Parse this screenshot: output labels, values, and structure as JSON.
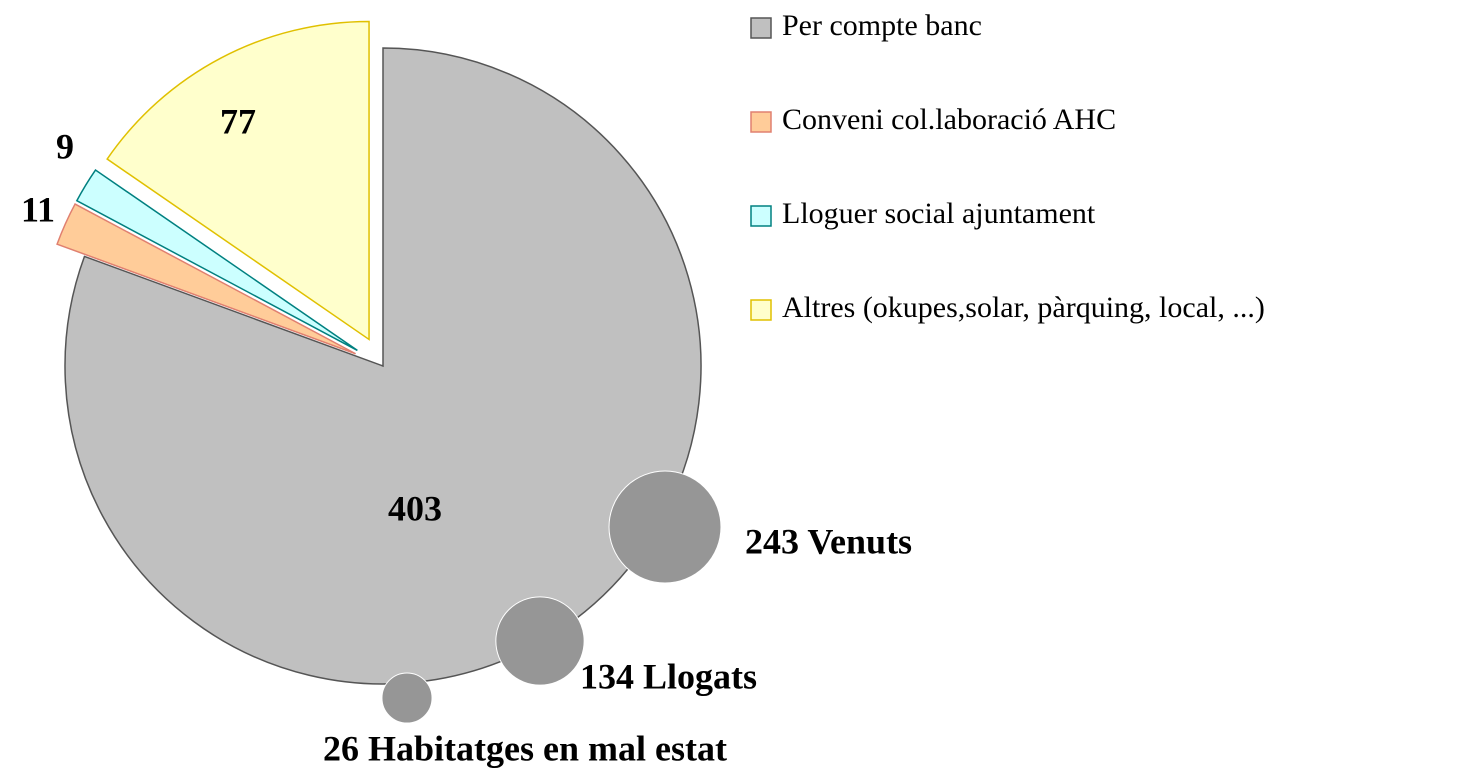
{
  "chart_data": {
    "type": "pie",
    "categories": [
      "Per compte banc",
      "Conveni col.laboració AHC",
      "Lloguer social ajuntament",
      "Altres (okupes,solar, pàrquing, local, ...)"
    ],
    "values": [
      403,
      11,
      9,
      77
    ],
    "colors": [
      "#c0c0c0",
      "#ffcc99",
      "#ccffff",
      "#ffffcc"
    ],
    "bubbles": {
      "values": [
        243,
        134,
        26
      ],
      "value_labels": [
        "243 Venuts",
        "134 Llogats",
        "26 Habitatges en mal estat"
      ],
      "color": "#969696"
    }
  }
}
